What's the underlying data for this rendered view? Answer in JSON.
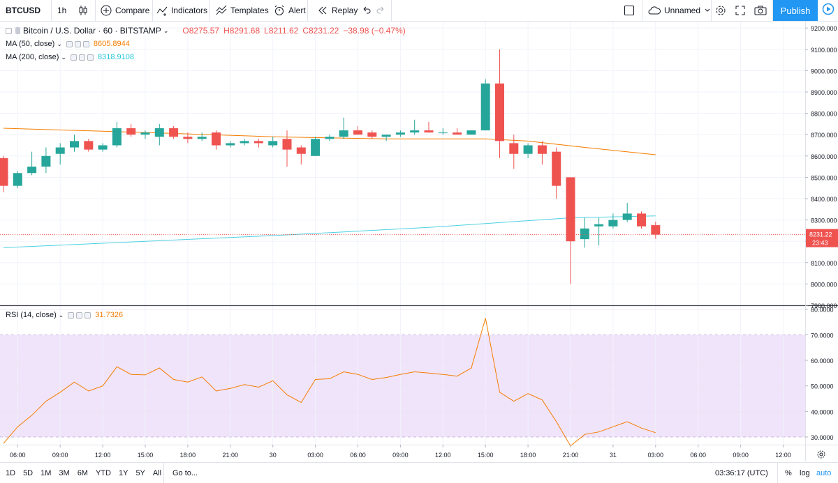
{
  "toolbar": {
    "symbol": "BTCUSD",
    "interval": "1h",
    "compare": "Compare",
    "indicators": "Indicators",
    "templates": "Templates",
    "alert": "Alert",
    "replay": "Replay",
    "layout_name": "Unnamed",
    "publish": "Publish"
  },
  "legend": {
    "main_title": "Bitcoin / U.S. Dollar · 60 · BITSTAMP",
    "open": "O8275.57",
    "high": "H8291.68",
    "low": "L8211.62",
    "close": "C8231.22",
    "change": "−38.98 (−0.47%)",
    "ma50_label": "MA (50, close)",
    "ma50_value": "8605.8944",
    "ma200_label": "MA (200, close)",
    "ma200_value": "8318.9108",
    "rsi_label": "RSI (14, close)",
    "rsi_value": "31.7326"
  },
  "price_tag": {
    "value": "8231.22",
    "countdown": "23:43"
  },
  "bottom": {
    "ranges": [
      "1D",
      "5D",
      "1M",
      "3M",
      "6M",
      "YTD",
      "1Y",
      "5Y",
      "All"
    ],
    "goto": "Go to...",
    "time": "03:36:17 (UTC)",
    "percent": "%",
    "log": "log",
    "auto": "auto"
  },
  "colors": {
    "up": "#26a69a",
    "down": "#ef5350",
    "ma50": "#f57c00",
    "ma200": "#4dd0e1",
    "rsi": "#f57c00",
    "rsi_band": "#f0e4fb",
    "publish": "#2196f3"
  },
  "chart_data": {
    "type": "candlestick",
    "price_axis": {
      "ylim": [
        7900,
        9230
      ],
      "ticks": [
        7900,
        8000,
        8100,
        8200,
        8300,
        8400,
        8500,
        8600,
        8700,
        8800,
        8900,
        9000,
        9100,
        9200
      ],
      "tick_labels": [
        "7900.000",
        "8000.000",
        "8100.000",
        "8200.000",
        "8300.000",
        "8400.000",
        "8500.000",
        "8600.000",
        "8700.000",
        "8800.000",
        "8900.000",
        "9000.000",
        "9100.000",
        "9200.000"
      ]
    },
    "x_axis": {
      "tick_labels": [
        "06:00",
        "09:00",
        "12:00",
        "15:00",
        "18:00",
        "21:00",
        "30",
        "03:00",
        "06:00",
        "09:00",
        "12:00",
        "15:00",
        "18:00",
        "21:00",
        "31",
        "03:00",
        "06:00",
        "09:00",
        "12:00"
      ],
      "tick_index": [
        1,
        4,
        7,
        10,
        13,
        16,
        19,
        22,
        25,
        28,
        31,
        34,
        37,
        40,
        43,
        46,
        49,
        52,
        55
      ],
      "first_candle_hour": "05:00"
    },
    "candles": [
      {
        "o": 8590,
        "h": 8600,
        "l": 8430,
        "c": 8460
      },
      {
        "o": 8460,
        "h": 8530,
        "l": 8450,
        "c": 8520
      },
      {
        "o": 8520,
        "h": 8620,
        "l": 8510,
        "c": 8550
      },
      {
        "o": 8550,
        "h": 8640,
        "l": 8520,
        "c": 8600
      },
      {
        "o": 8610,
        "h": 8660,
        "l": 8560,
        "c": 8640
      },
      {
        "o": 8640,
        "h": 8700,
        "l": 8620,
        "c": 8670
      },
      {
        "o": 8670,
        "h": 8680,
        "l": 8620,
        "c": 8630
      },
      {
        "o": 8630,
        "h": 8660,
        "l": 8620,
        "c": 8650
      },
      {
        "o": 8650,
        "h": 8760,
        "l": 8640,
        "c": 8730
      },
      {
        "o": 8730,
        "h": 8750,
        "l": 8690,
        "c": 8700
      },
      {
        "o": 8700,
        "h": 8720,
        "l": 8680,
        "c": 8710
      },
      {
        "o": 8690,
        "h": 8750,
        "l": 8650,
        "c": 8730
      },
      {
        "o": 8730,
        "h": 8740,
        "l": 8680,
        "c": 8690
      },
      {
        "o": 8690,
        "h": 8710,
        "l": 8660,
        "c": 8680
      },
      {
        "o": 8680,
        "h": 8710,
        "l": 8670,
        "c": 8690
      },
      {
        "o": 8710,
        "h": 8720,
        "l": 8630,
        "c": 8650
      },
      {
        "o": 8650,
        "h": 8670,
        "l": 8640,
        "c": 8660
      },
      {
        "o": 8660,
        "h": 8680,
        "l": 8650,
        "c": 8670
      },
      {
        "o": 8670,
        "h": 8680,
        "l": 8640,
        "c": 8660
      },
      {
        "o": 8650,
        "h": 8690,
        "l": 8640,
        "c": 8670
      },
      {
        "o": 8680,
        "h": 8720,
        "l": 8550,
        "c": 8630
      },
      {
        "o": 8640,
        "h": 8650,
        "l": 8560,
        "c": 8610
      },
      {
        "o": 8600,
        "h": 8690,
        "l": 8600,
        "c": 8680
      },
      {
        "o": 8680,
        "h": 8700,
        "l": 8670,
        "c": 8690
      },
      {
        "o": 8690,
        "h": 8780,
        "l": 8680,
        "c": 8720
      },
      {
        "o": 8720,
        "h": 8740,
        "l": 8700,
        "c": 8700
      },
      {
        "o": 8710,
        "h": 8720,
        "l": 8680,
        "c": 8690
      },
      {
        "o": 8690,
        "h": 8700,
        "l": 8670,
        "c": 8700
      },
      {
        "o": 8700,
        "h": 8720,
        "l": 8690,
        "c": 8710
      },
      {
        "o": 8710,
        "h": 8770,
        "l": 8700,
        "c": 8720
      },
      {
        "o": 8720,
        "h": 8760,
        "l": 8710,
        "c": 8710
      },
      {
        "o": 8710,
        "h": 8730,
        "l": 8700,
        "c": 8710
      },
      {
        "o": 8710,
        "h": 8730,
        "l": 8700,
        "c": 8700
      },
      {
        "o": 8700,
        "h": 8720,
        "l": 8700,
        "c": 8720
      },
      {
        "o": 8720,
        "h": 8960,
        "l": 8720,
        "c": 8940
      },
      {
        "o": 8940,
        "h": 9100,
        "l": 8590,
        "c": 8670
      },
      {
        "o": 8660,
        "h": 8700,
        "l": 8540,
        "c": 8610
      },
      {
        "o": 8610,
        "h": 8660,
        "l": 8590,
        "c": 8650
      },
      {
        "o": 8650,
        "h": 8670,
        "l": 8560,
        "c": 8610
      },
      {
        "o": 8620,
        "h": 8640,
        "l": 8400,
        "c": 8460
      },
      {
        "o": 8500,
        "h": 8500,
        "l": 8000,
        "c": 8200
      },
      {
        "o": 8210,
        "h": 8310,
        "l": 8170,
        "c": 8260
      },
      {
        "o": 8270,
        "h": 8310,
        "l": 8180,
        "c": 8280
      },
      {
        "o": 8270,
        "h": 8330,
        "l": 8260,
        "c": 8300
      },
      {
        "o": 8300,
        "h": 8380,
        "l": 8290,
        "c": 8330
      },
      {
        "o": 8330,
        "h": 8340,
        "l": 8260,
        "c": 8270
      },
      {
        "o": 8275.57,
        "h": 8291.68,
        "l": 8211.62,
        "c": 8231.22
      }
    ],
    "ma50": {
      "start": 8730,
      "end": 8606,
      "path": [
        [
          0,
          8730
        ],
        [
          10,
          8710
        ],
        [
          19,
          8690
        ],
        [
          27,
          8680
        ],
        [
          34,
          8680
        ],
        [
          37,
          8670
        ],
        [
          41,
          8640
        ],
        [
          46,
          8606
        ]
      ]
    },
    "ma200": {
      "start": 8170,
      "end": 8319,
      "path": [
        [
          0,
          8170
        ],
        [
          10,
          8200
        ],
        [
          20,
          8230
        ],
        [
          30,
          8265
        ],
        [
          40,
          8310
        ],
        [
          46,
          8319
        ]
      ]
    },
    "rsi": {
      "ylim": [
        27,
        81
      ],
      "ticks": [
        30,
        40,
        50,
        60,
        70,
        80
      ],
      "tick_labels": [
        "30.0000",
        "40.0000",
        "50.0000",
        "60.0000",
        "70.0000",
        "80.0000"
      ],
      "band": [
        30,
        70
      ],
      "values": [
        27.5,
        34,
        38.5,
        44,
        47.5,
        51.5,
        48,
        50,
        57.5,
        54.5,
        54.3,
        57,
        52.5,
        51.5,
        53.5,
        48,
        49,
        50.5,
        49.5,
        52,
        46.5,
        43.5,
        52.5,
        52.8,
        55.5,
        54.5,
        52.5,
        53.3,
        54.5,
        55.5,
        55,
        54.5,
        53.8,
        57,
        76.5,
        47.5,
        44,
        47,
        44.5,
        36,
        26.5,
        31,
        32,
        34,
        36,
        33.5,
        31.7
      ]
    }
  }
}
